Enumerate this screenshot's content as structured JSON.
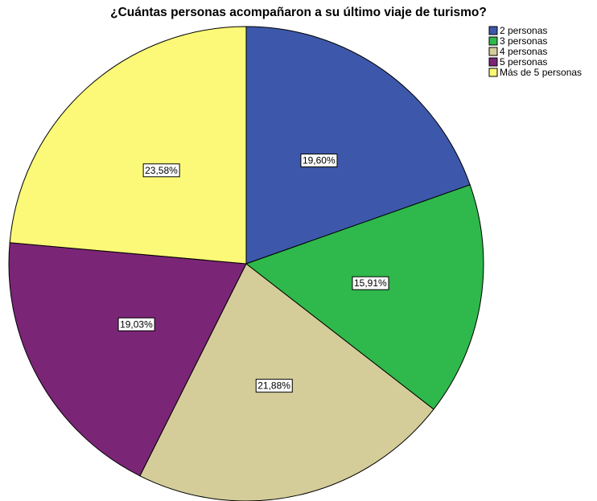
{
  "chart_data": {
    "type": "pie",
    "title": "¿Cuántas personas acompañaron a su último viaje de turismo?",
    "categories": [
      "2 personas",
      "3 personas",
      "4 personas",
      "5 personas",
      "Más de 5 personas"
    ],
    "values": [
      19.6,
      15.91,
      21.88,
      19.03,
      23.58
    ],
    "value_labels": [
      "19,60%",
      "15,91%",
      "21,88%",
      "19,03%",
      "23,58%"
    ],
    "colors": [
      "#3d58ab",
      "#2fb84b",
      "#d4cd99",
      "#7b2577",
      "#fbf977"
    ],
    "legend": "top-right"
  }
}
